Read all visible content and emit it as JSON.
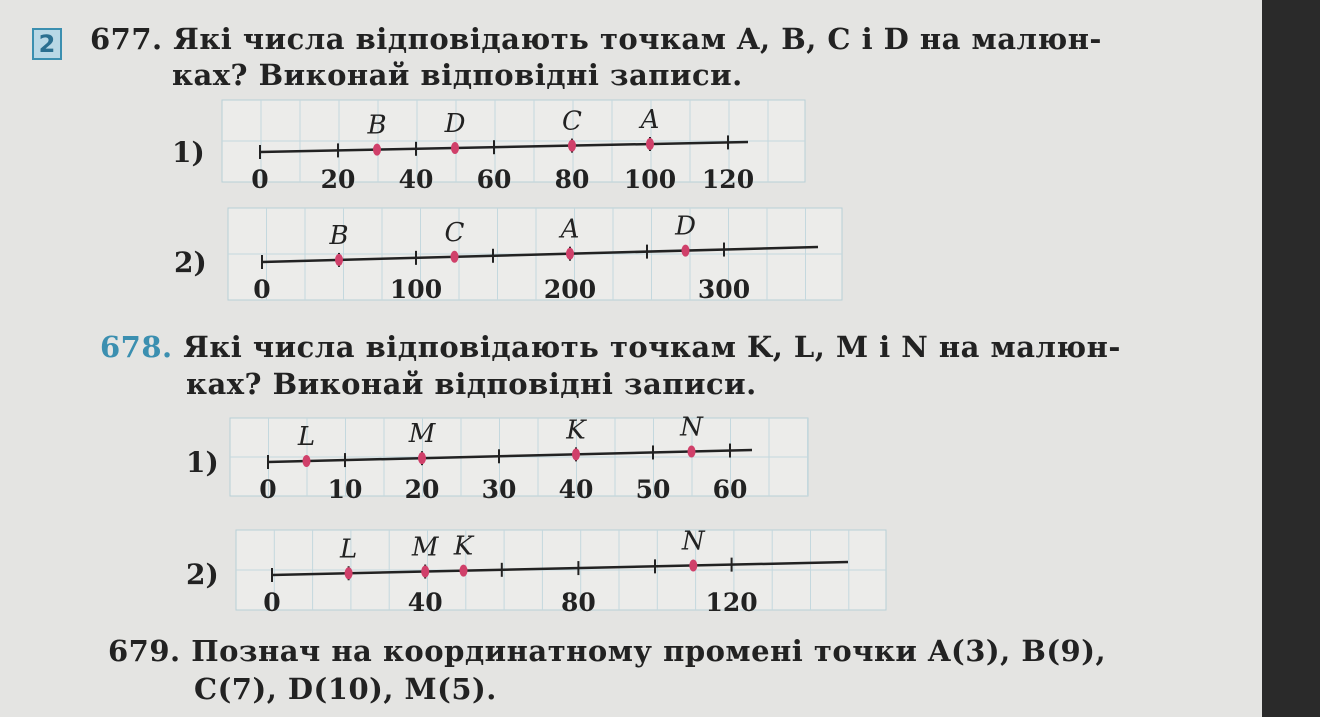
{
  "badge": "2",
  "p677": {
    "number": "677.",
    "line1": "Які числа відповідають точкам A, B, C і D на малюн-",
    "line2": "ках? Виконай відповідні записи."
  },
  "p678": {
    "number": "678.",
    "line1": "Які числа відповідають точкам K, L, M і N на малюн-",
    "line2": "ках? Виконай відповідні записи."
  },
  "p679": {
    "number": "679.",
    "line1": "Познач на координатному промені точки A(3), B(9),",
    "line2": "C(7), D(10), M(5)."
  },
  "colors": {
    "point": "#d0406a",
    "accent": "#3b8fb0"
  },
  "chart_data": [
    {
      "type": "number-line",
      "label": "1)",
      "tick_step": 20,
      "ticks_max": 120,
      "tick_labels": [
        "0",
        "20",
        "40",
        "60",
        "80",
        "100",
        "120"
      ],
      "tick_label_values": [
        0,
        20,
        40,
        60,
        80,
        100,
        120
      ],
      "points": [
        {
          "name": "B",
          "value": 30
        },
        {
          "name": "D",
          "value": 50
        },
        {
          "name": "C",
          "value": 80
        },
        {
          "name": "A",
          "value": 100
        }
      ]
    },
    {
      "type": "number-line",
      "label": "2)",
      "tick_step": 50,
      "ticks_max": 300,
      "tick_labels": [
        "0",
        "100",
        "200",
        "300"
      ],
      "tick_label_values": [
        0,
        100,
        200,
        300
      ],
      "points": [
        {
          "name": "B",
          "value": 50
        },
        {
          "name": "C",
          "value": 125
        },
        {
          "name": "A",
          "value": 200
        },
        {
          "name": "D",
          "value": 275
        }
      ]
    },
    {
      "type": "number-line",
      "label": "1)",
      "tick_step": 10,
      "ticks_max": 60,
      "tick_labels": [
        "0",
        "10",
        "20",
        "30",
        "40",
        "50",
        "60"
      ],
      "tick_label_values": [
        0,
        10,
        20,
        30,
        40,
        50,
        60
      ],
      "points": [
        {
          "name": "L",
          "value": 5
        },
        {
          "name": "M",
          "value": 20
        },
        {
          "name": "K",
          "value": 40
        },
        {
          "name": "N",
          "value": 55
        }
      ]
    },
    {
      "type": "number-line",
      "label": "2)",
      "tick_step": 20,
      "ticks_max": 120,
      "tick_labels": [
        "0",
        "40",
        "80",
        "120"
      ],
      "tick_label_values": [
        0,
        40,
        80,
        120
      ],
      "points": [
        {
          "name": "L",
          "value": 20
        },
        {
          "name": "M",
          "value": 40
        },
        {
          "name": "K",
          "value": 50
        },
        {
          "name": "N",
          "value": 110
        }
      ]
    }
  ]
}
